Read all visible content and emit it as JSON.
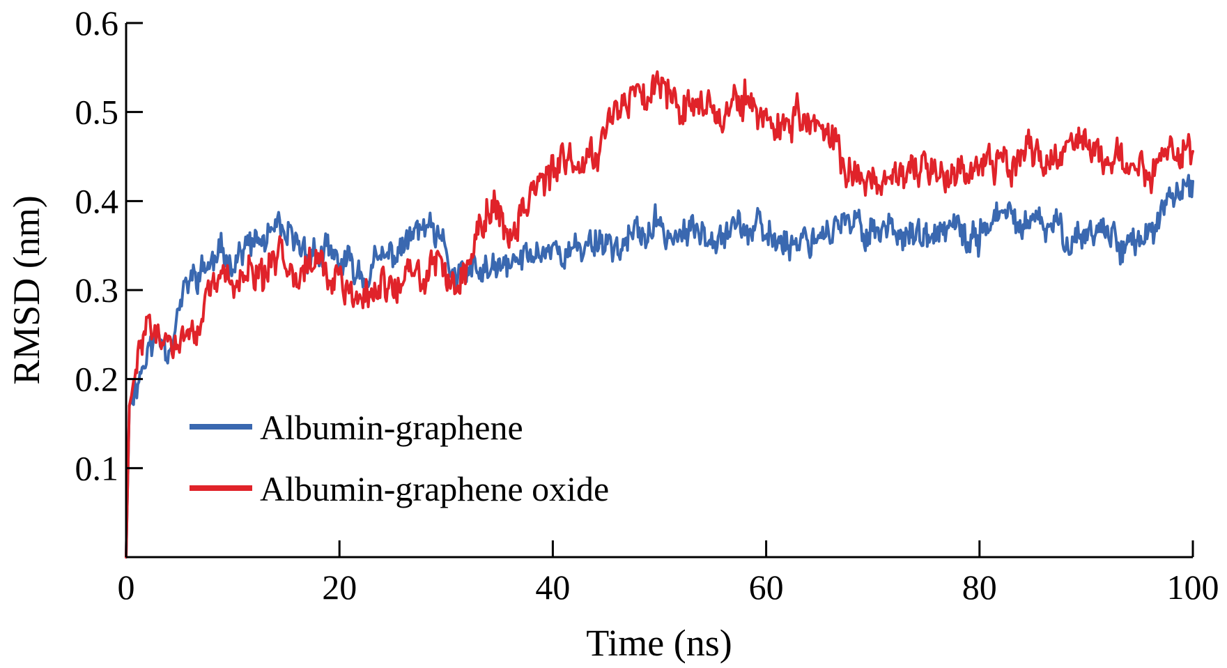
{
  "chart_data": {
    "type": "line",
    "title": "",
    "xlabel": "Time (ns)",
    "ylabel": "RMSD (nm)",
    "xlim": [
      0,
      100
    ],
    "ylim": [
      0,
      0.6
    ],
    "xticks": [
      0,
      20,
      40,
      60,
      80,
      100
    ],
    "yticks": [
      0.1,
      0.2,
      0.3,
      0.4,
      0.5,
      0.6
    ],
    "xtick_labels": [
      "0",
      "20",
      "40",
      "60",
      "80",
      "100"
    ],
    "ytick_labels": [
      "0.1",
      "0.2",
      "0.3",
      "0.4",
      "0.5",
      "0.6"
    ],
    "grid": false,
    "legend_position": "bottom-left",
    "series": [
      {
        "name": "Albumin-graphene",
        "color": "#3a68b0",
        "noise": 0.014,
        "seed": 11,
        "anchors": [
          [
            0,
            0.0
          ],
          [
            0.3,
            0.17
          ],
          [
            1,
            0.2
          ],
          [
            2,
            0.23
          ],
          [
            3,
            0.25
          ],
          [
            4,
            0.24
          ],
          [
            5,
            0.28
          ],
          [
            6,
            0.31
          ],
          [
            8,
            0.33
          ],
          [
            10,
            0.34
          ],
          [
            12,
            0.35
          ],
          [
            14,
            0.36
          ],
          [
            16,
            0.35
          ],
          [
            18,
            0.34
          ],
          [
            20,
            0.33
          ],
          [
            22,
            0.32
          ],
          [
            24,
            0.33
          ],
          [
            26,
            0.35
          ],
          [
            28,
            0.37
          ],
          [
            30,
            0.34
          ],
          [
            31,
            0.31
          ],
          [
            33,
            0.32
          ],
          [
            35,
            0.32
          ],
          [
            38,
            0.34
          ],
          [
            40,
            0.35
          ],
          [
            42,
            0.34
          ],
          [
            44,
            0.36
          ],
          [
            46,
            0.35
          ],
          [
            48,
            0.36
          ],
          [
            50,
            0.37
          ],
          [
            52,
            0.36
          ],
          [
            55,
            0.37
          ],
          [
            57,
            0.375
          ],
          [
            60,
            0.36
          ],
          [
            63,
            0.355
          ],
          [
            66,
            0.37
          ],
          [
            70,
            0.37
          ],
          [
            73,
            0.37
          ],
          [
            75,
            0.35
          ],
          [
            77,
            0.37
          ],
          [
            79,
            0.35
          ],
          [
            81,
            0.38
          ],
          [
            83,
            0.38
          ],
          [
            85,
            0.37
          ],
          [
            87,
            0.37
          ],
          [
            89,
            0.36
          ],
          [
            91,
            0.37
          ],
          [
            93,
            0.36
          ],
          [
            95,
            0.35
          ],
          [
            97,
            0.38
          ],
          [
            99,
            0.41
          ],
          [
            100,
            0.42
          ]
        ]
      },
      {
        "name": "Albumin-graphene oxide",
        "color": "#e0232a",
        "noise": 0.016,
        "seed": 29,
        "anchors": [
          [
            0,
            0.0
          ],
          [
            0.3,
            0.17
          ],
          [
            1,
            0.21
          ],
          [
            2,
            0.27
          ],
          [
            3,
            0.24
          ],
          [
            5,
            0.24
          ],
          [
            7,
            0.27
          ],
          [
            9,
            0.31
          ],
          [
            11,
            0.32
          ],
          [
            13,
            0.31
          ],
          [
            15,
            0.34
          ],
          [
            17,
            0.33
          ],
          [
            19,
            0.32
          ],
          [
            21,
            0.29
          ],
          [
            23,
            0.29
          ],
          [
            25,
            0.31
          ],
          [
            27,
            0.31
          ],
          [
            29,
            0.33
          ],
          [
            31,
            0.31
          ],
          [
            33,
            0.36
          ],
          [
            34,
            0.4
          ],
          [
            36,
            0.36
          ],
          [
            38,
            0.42
          ],
          [
            40,
            0.43
          ],
          [
            42,
            0.44
          ],
          [
            44,
            0.46
          ],
          [
            46,
            0.51
          ],
          [
            48,
            0.52
          ],
          [
            50,
            0.54
          ],
          [
            52,
            0.52
          ],
          [
            54,
            0.51
          ],
          [
            56,
            0.5
          ],
          [
            58,
            0.51
          ],
          [
            60,
            0.49
          ],
          [
            63,
            0.49
          ],
          [
            65,
            0.48
          ],
          [
            67,
            0.45
          ],
          [
            69,
            0.42
          ],
          [
            71,
            0.43
          ],
          [
            73,
            0.42
          ],
          [
            75,
            0.43
          ],
          [
            78,
            0.44
          ],
          [
            80,
            0.44
          ],
          [
            82,
            0.45
          ],
          [
            85,
            0.45
          ],
          [
            87,
            0.45
          ],
          [
            89,
            0.47
          ],
          [
            91,
            0.45
          ],
          [
            93,
            0.45
          ],
          [
            95,
            0.44
          ],
          [
            97,
            0.44
          ],
          [
            99,
            0.46
          ],
          [
            100,
            0.44
          ]
        ]
      }
    ]
  }
}
